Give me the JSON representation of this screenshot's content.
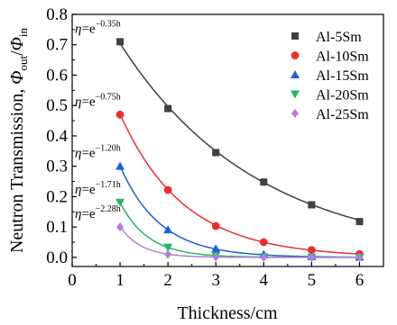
{
  "chart_data": {
    "type": "scatter",
    "x_tick_labels": [
      "0",
      "1",
      "2",
      "3",
      "4",
      "5",
      "6"
    ],
    "y_tick_labels": [
      "0.0",
      "0.1",
      "0.2",
      "0.3",
      "0.4",
      "0.5",
      "0.6",
      "0.7",
      "0.8"
    ],
    "xlim": [
      0,
      6.5
    ],
    "ylim": [
      -0.03,
      0.8
    ],
    "xlabel": "Thickness/cm",
    "ylabel_main": "Neutron Transmission, ",
    "ylabel_phi": "Φ",
    "ylabel_out": "out",
    "ylabel_slash": "/",
    "ylabel_in": "in",
    "grid": false,
    "legend_position": "top-right",
    "series": [
      {
        "name": "Al-5Sm",
        "color": "#404040",
        "marker": "square",
        "x": [
          1,
          2,
          3,
          4,
          5,
          6
        ],
        "y": [
          0.71,
          0.49,
          0.345,
          0.248,
          0.173,
          0.118
        ],
        "coef": 0.35,
        "eq_prefix": "η=e",
        "eq_exp": "−0.35h"
      },
      {
        "name": "Al-10Sm",
        "color": "#e83030",
        "marker": "circle",
        "x": [
          1,
          2,
          3,
          4,
          5,
          6
        ],
        "y": [
          0.47,
          0.222,
          0.103,
          0.05,
          0.024,
          0.011
        ],
        "coef": 0.75,
        "eq_prefix": "η=e",
        "eq_exp": "−0.75h"
      },
      {
        "name": "Al-15Sm",
        "color": "#1f5fd6",
        "marker": "triangle-up",
        "x": [
          1,
          2,
          3,
          4,
          5,
          6
        ],
        "y": [
          0.3,
          0.091,
          0.028,
          0.01,
          0.003,
          0.001
        ],
        "coef": 1.2,
        "eq_prefix": "η=e",
        "eq_exp": "−1.20h"
      },
      {
        "name": "Al-20Sm",
        "color": "#27b561",
        "marker": "triangle-down",
        "x": [
          1,
          2,
          3,
          4,
          5,
          6
        ],
        "y": [
          0.181,
          0.033,
          0.006,
          0.001,
          0.0,
          0.0
        ],
        "coef": 1.71,
        "eq_prefix": "η=e",
        "eq_exp": "−1.71h"
      },
      {
        "name": "Al-25Sm",
        "color": "#b080d8",
        "marker": "diamond",
        "x": [
          1,
          2,
          3,
          4,
          5,
          6
        ],
        "y": [
          0.1,
          0.01,
          0.001,
          0.0,
          0.0,
          0.0
        ],
        "coef": 2.28,
        "eq_prefix": "η=e",
        "eq_exp": "−2.28h"
      }
    ]
  }
}
